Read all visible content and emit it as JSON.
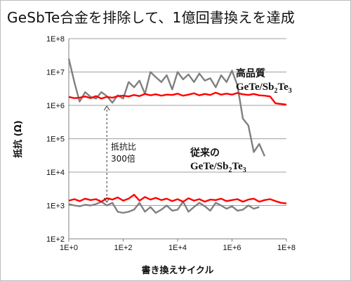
{
  "title": "GeSbTe合金を排除して、1億回書換えを達成",
  "chart_data": {
    "type": "line",
    "xlabel": "書き換えサイクル",
    "ylabel": "抵抗 (Ω)",
    "x_scale": "log",
    "y_scale": "log",
    "xlim": [
      1,
      100000000
    ],
    "ylim": [
      100,
      100000000
    ],
    "x_ticks": [
      "1E+0",
      "1E+2",
      "1E+4",
      "1E+6",
      "1E+8"
    ],
    "y_ticks": [
      "1E+8",
      "1E+7",
      "1E+6",
      "1E+5",
      "1E+4",
      "1E+3",
      "1E+2"
    ],
    "grid": "horizontal",
    "colors": {
      "high_quality": "#ff0000",
      "conventional": "#808080",
      "grid": "#a0a0a0"
    },
    "series": [
      {
        "name": "高品質 GeTe/Sb₂Te₃ (high)",
        "color": "#ff0000",
        "points": [
          [
            1,
            1800000
          ],
          [
            1.6,
            1650000
          ],
          [
            2.5,
            1700000
          ],
          [
            4,
            1850000
          ],
          [
            6.3,
            1650000
          ],
          [
            10,
            1900000
          ],
          [
            15.8,
            1600000
          ],
          [
            25,
            1800000
          ],
          [
            40,
            1700000
          ],
          [
            63,
            1900000
          ],
          [
            100,
            1950000
          ],
          [
            158,
            1850000
          ],
          [
            251,
            2050000
          ],
          [
            398,
            1900000
          ],
          [
            631,
            2200000
          ],
          [
            1000,
            2000000
          ],
          [
            1585,
            2150000
          ],
          [
            2512,
            1950000
          ],
          [
            3981,
            2100000
          ],
          [
            6310,
            2050000
          ],
          [
            10000,
            2250000
          ],
          [
            15849,
            1950000
          ],
          [
            25119,
            2100000
          ],
          [
            39811,
            2300000
          ],
          [
            63096,
            2000000
          ],
          [
            100000,
            2200000
          ],
          [
            158489,
            2050000
          ],
          [
            251189,
            2400000
          ],
          [
            398107,
            2100000
          ],
          [
            630957,
            2250000
          ],
          [
            1000000,
            2100000
          ],
          [
            1584893,
            2350000
          ],
          [
            2511886,
            2150000
          ],
          [
            3981072,
            2050000
          ],
          [
            6309573,
            2200000
          ],
          [
            10000000,
            2000000
          ],
          [
            15848932,
            1950000
          ],
          [
            25118864,
            1850000
          ],
          [
            39810717,
            1150000
          ],
          [
            63095734,
            1100000
          ],
          [
            100000000,
            1050000
          ]
        ]
      },
      {
        "name": "高品質 GeTe/Sb₂Te₃ (low)",
        "color": "#ff0000",
        "points": [
          [
            1,
            1400
          ],
          [
            1.6,
            1550
          ],
          [
            2.5,
            1350
          ],
          [
            4,
            1600
          ],
          [
            6.3,
            1450
          ],
          [
            10,
            1550
          ],
          [
            15.8,
            1300
          ],
          [
            25,
            1650
          ],
          [
            40,
            1500
          ],
          [
            63,
            1750
          ],
          [
            100,
            1400
          ],
          [
            158,
            1600
          ],
          [
            251,
            2100
          ],
          [
            398,
            1400
          ],
          [
            631,
            1800
          ],
          [
            1000,
            1500
          ],
          [
            1585,
            1700
          ],
          [
            2512,
            1450
          ],
          [
            3981,
            1600
          ],
          [
            6310,
            1350
          ],
          [
            10000,
            1550
          ],
          [
            15849,
            1300
          ],
          [
            25119,
            1650
          ],
          [
            39811,
            1400
          ],
          [
            63096,
            1550
          ],
          [
            100000,
            1300
          ],
          [
            158489,
            1500
          ],
          [
            251189,
            1450
          ],
          [
            398107,
            1600
          ],
          [
            630957,
            1350
          ],
          [
            1000000,
            1450
          ],
          [
            1584893,
            1550
          ],
          [
            2511886,
            1300
          ],
          [
            3981072,
            1500
          ],
          [
            6309573,
            1600
          ],
          [
            10000000,
            1300
          ],
          [
            15848932,
            1450
          ],
          [
            25118864,
            1550
          ],
          [
            39810717,
            1350
          ],
          [
            63095734,
            1200
          ],
          [
            100000000,
            1150
          ]
        ]
      },
      {
        "name": "従来の GeTe/Sb₂Te₃ (high)",
        "color": "#808080",
        "points": [
          [
            1,
            25000000
          ],
          [
            1.6,
            5000000
          ],
          [
            2.5,
            1300000
          ],
          [
            4,
            2500000
          ],
          [
            6.3,
            1800000
          ],
          [
            10,
            1600000
          ],
          [
            15.8,
            2500000
          ],
          [
            25,
            1900000
          ],
          [
            40,
            1200000
          ],
          [
            63,
            2000000
          ],
          [
            100,
            1600000
          ],
          [
            158,
            5000000
          ],
          [
            251,
            3500000
          ],
          [
            398,
            5500000
          ],
          [
            631,
            2200000
          ],
          [
            1000,
            10000000
          ],
          [
            1585,
            7000000
          ],
          [
            2512,
            5000000
          ],
          [
            3981,
            8000000
          ],
          [
            6310,
            3000000
          ],
          [
            10000,
            10000000
          ],
          [
            15849,
            6000000
          ],
          [
            25119,
            8500000
          ],
          [
            39811,
            5000000
          ],
          [
            63096,
            9000000
          ],
          [
            100000,
            5500000
          ],
          [
            158489,
            6500000
          ],
          [
            251189,
            3500000
          ],
          [
            398107,
            8000000
          ],
          [
            630957,
            5000000
          ],
          [
            1000000,
            11000000
          ],
          [
            1584893,
            4000000
          ],
          [
            2511886,
            400000
          ],
          [
            3981072,
            250000
          ],
          [
            6309573,
            40000
          ],
          [
            10000000,
            70000
          ],
          [
            15848932,
            30000
          ]
        ]
      },
      {
        "name": "従来の GeTe/Sb₂Te₃ (low)",
        "color": "#808080",
        "points": [
          [
            1,
            1100
          ],
          [
            1.6,
            1000
          ],
          [
            2.5,
            950
          ],
          [
            4,
            1050
          ],
          [
            6.3,
            1000
          ],
          [
            10,
            1100
          ],
          [
            15.8,
            1300
          ],
          [
            25,
            1000
          ],
          [
            40,
            1200
          ],
          [
            63,
            650
          ],
          [
            100,
            600
          ],
          [
            158,
            650
          ],
          [
            251,
            750
          ],
          [
            398,
            1200
          ],
          [
            631,
            650
          ],
          [
            1000,
            900
          ],
          [
            1585,
            600
          ],
          [
            2512,
            750
          ],
          [
            3981,
            1000
          ],
          [
            6310,
            700
          ],
          [
            10000,
            750
          ],
          [
            15849,
            1300
          ],
          [
            25119,
            650
          ],
          [
            39811,
            900
          ],
          [
            63096,
            1200
          ],
          [
            100000,
            950
          ],
          [
            158489,
            700
          ],
          [
            251189,
            1200
          ],
          [
            398107,
            1000
          ],
          [
            630957,
            800
          ],
          [
            1000000,
            950
          ],
          [
            1584893,
            700
          ],
          [
            2511886,
            750
          ],
          [
            3981072,
            1000
          ],
          [
            6309573,
            800
          ],
          [
            10000000,
            900
          ]
        ]
      }
    ],
    "annotations": {
      "ratio_line1": "抵抗比",
      "ratio_line2": "300倍",
      "ratio_arrow_x": 25,
      "ratio_arrow_from": 1000000,
      "ratio_arrow_to": 1200
    },
    "legend": {
      "high_line1": "高品質",
      "high_line2_a": "GeTe/Sb",
      "high_line2_sub1": "2",
      "high_line2_b": "Te",
      "high_line2_sub2": "3",
      "conv_line1": "従来の",
      "conv_line2_a": "GeTe/Sb",
      "conv_line2_sub1": "2",
      "conv_line2_b": "Te",
      "conv_line2_sub2": "3"
    }
  }
}
